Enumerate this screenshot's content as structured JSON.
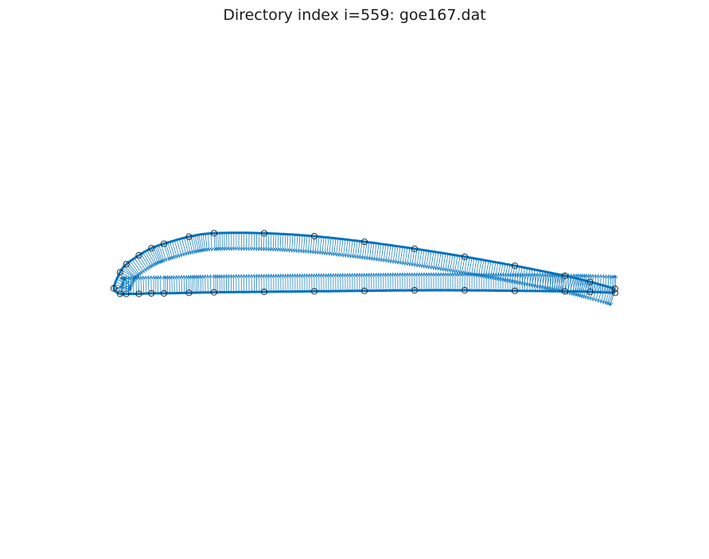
{
  "chart_data": {
    "type": "scatter",
    "title": "Directory index i=559: goe167.dat",
    "xlabel": "",
    "ylabel": "",
    "axes_visible": false,
    "grid": false,
    "legend": "none",
    "colors": {
      "curve": "#0072BD",
      "normals": "#0072BD",
      "markers": "#1a1a1a"
    },
    "series": [
      {
        "kind": "outline",
        "x": [
          1.0,
          0.95,
          0.9,
          0.8,
          0.7,
          0.6,
          0.5,
          0.4,
          0.3,
          0.2,
          0.15,
          0.1,
          0.075,
          0.05,
          0.025,
          0.0125,
          0.0,
          0.0125,
          0.025,
          0.05,
          0.075,
          0.1,
          0.15,
          0.2,
          0.3,
          0.4,
          0.5,
          0.6,
          0.7,
          0.8,
          0.9,
          0.95,
          1.0
        ],
        "y": [
          0.006,
          0.02,
          0.032,
          0.052,
          0.07,
          0.086,
          0.1,
          0.111,
          0.117,
          0.117,
          0.11,
          0.096,
          0.087,
          0.073,
          0.055,
          0.039,
          0.007,
          -0.004,
          -0.004,
          -0.004,
          -0.003,
          -0.003,
          -0.002,
          -0.001,
          0.0,
          0.001,
          0.002,
          0.003,
          0.003,
          0.002,
          0.001,
          0.0,
          -0.002
        ]
      },
      {
        "kind": "markers",
        "x": [
          1.0,
          0.95,
          0.9,
          0.8,
          0.7,
          0.6,
          0.5,
          0.4,
          0.3,
          0.2,
          0.15,
          0.1,
          0.075,
          0.05,
          0.025,
          0.0125,
          0.0,
          0.0125,
          0.025,
          0.05,
          0.075,
          0.1,
          0.15,
          0.2,
          0.3,
          0.4,
          0.5,
          0.6,
          0.7,
          0.8,
          0.9,
          0.95,
          1.0
        ],
        "y": [
          0.006,
          0.02,
          0.032,
          0.052,
          0.07,
          0.086,
          0.1,
          0.111,
          0.117,
          0.117,
          0.11,
          0.096,
          0.087,
          0.073,
          0.055,
          0.039,
          0.007,
          -0.004,
          -0.004,
          -0.004,
          -0.003,
          -0.003,
          -0.002,
          -0.001,
          0.0,
          0.001,
          0.002,
          0.003,
          0.003,
          0.002,
          0.001,
          0.0,
          -0.002
        ]
      }
    ]
  }
}
